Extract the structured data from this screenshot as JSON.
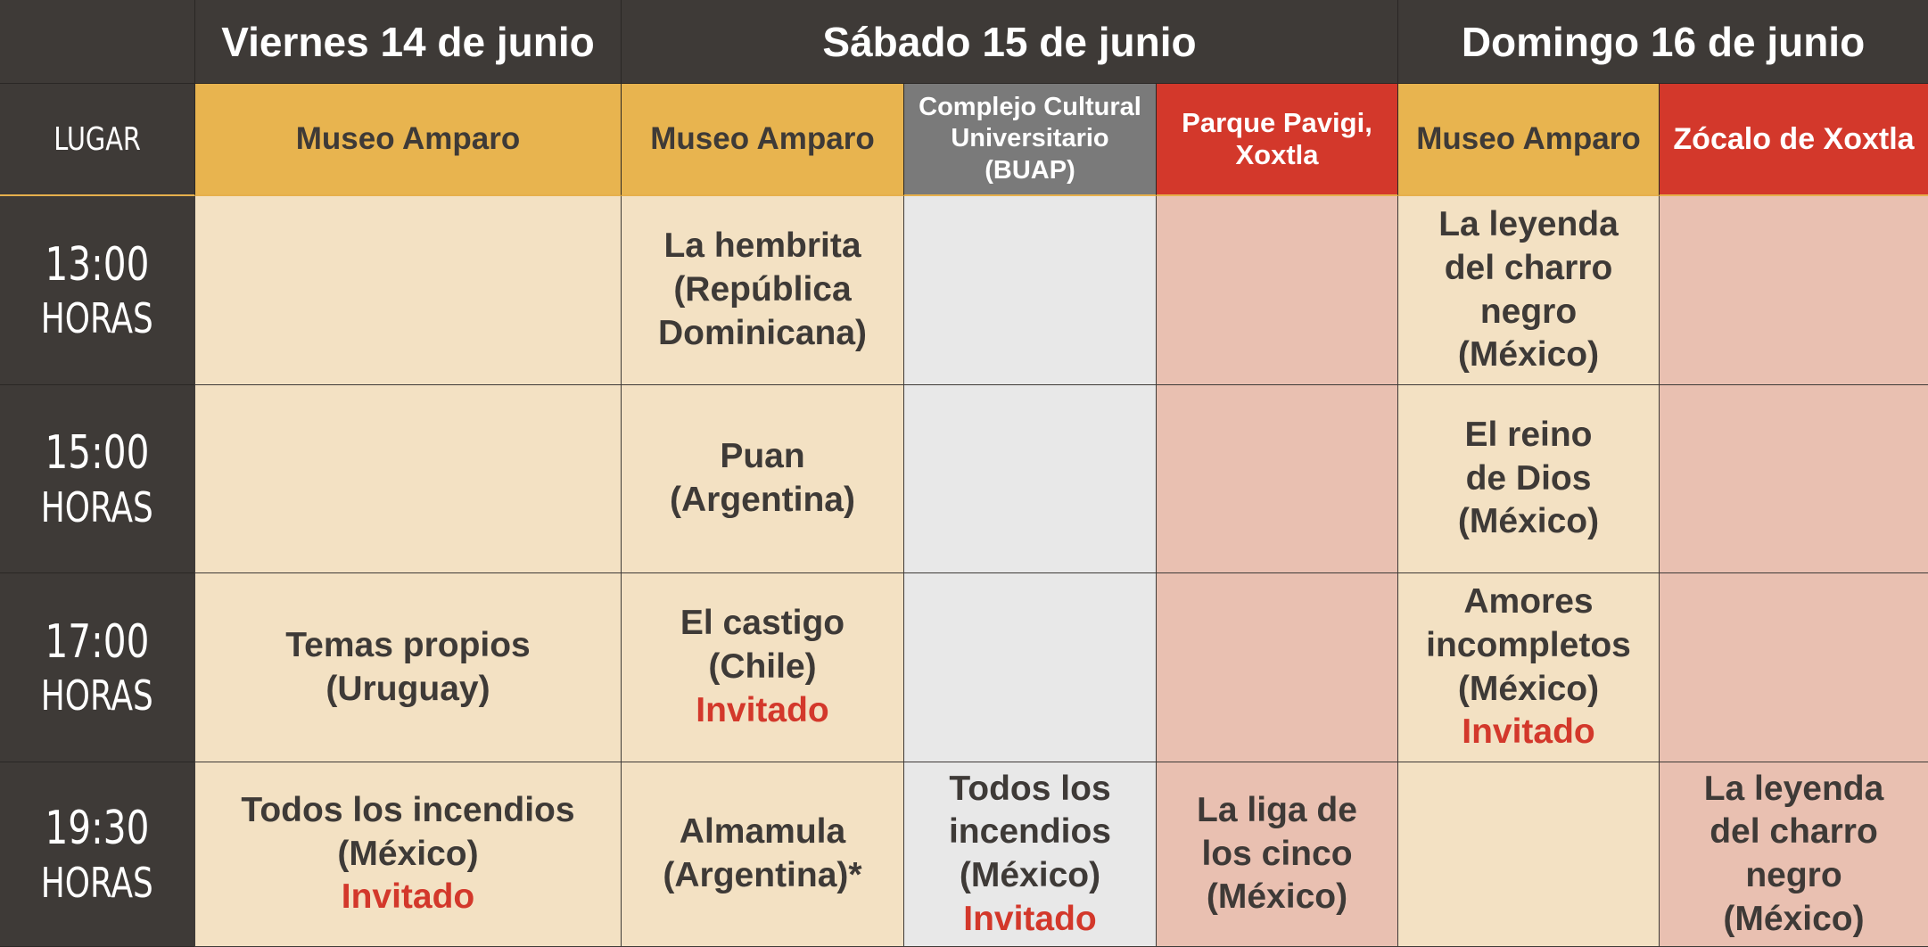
{
  "days": [
    "Viernes 14 de junio",
    "Sábado 15 de junio",
    "Domingo 16 de junio"
  ],
  "lugar_label": "LUGAR",
  "venues": [
    {
      "name": "Museo Amparo",
      "color": "#e8b44f"
    },
    {
      "name": "Museo Amparo",
      "color": "#e8b44f"
    },
    {
      "name": "Complejo Cultural Universitario (BUAP)",
      "color": "#7a7a7a"
    },
    {
      "name": "Parque Pavigi, Xoxtla",
      "color": "#d3382b"
    },
    {
      "name": "Museo Amparo",
      "color": "#e8b44f"
    },
    {
      "name": "Zócalo de Xoxtla",
      "color": "#d3382b"
    }
  ],
  "times": [
    {
      "time": "13:00",
      "unit": "HORAS"
    },
    {
      "time": "15:00",
      "unit": "HORAS"
    },
    {
      "time": "17:00",
      "unit": "HORAS"
    },
    {
      "time": "19:30",
      "unit": "HORAS"
    }
  ],
  "invitado_label": "Invitado",
  "screenings": {
    "r13": {
      "sab_amparo": [
        "La hembrita",
        "(República",
        "Dominicana)"
      ],
      "dom_amparo": [
        "La leyenda",
        "del charro",
        "negro",
        "(México)"
      ]
    },
    "r15": {
      "sab_amparo": [
        "Puan",
        "(Argentina)"
      ],
      "dom_amparo": [
        "El reino",
        "de Dios",
        "(México)"
      ]
    },
    "r17": {
      "vie_amparo": [
        "Temas propios",
        "(Uruguay)"
      ],
      "sab_amparo": [
        "El castigo",
        "(Chile)"
      ],
      "dom_amparo": [
        "Amores",
        "incompletos",
        "(México)"
      ]
    },
    "r1930": {
      "vie_amparo": [
        "Todos los incendios",
        "(México)"
      ],
      "sab_amparo": [
        "Almamula",
        "(Argentina)*"
      ],
      "sab_complejo": [
        "Todos los",
        "incendios",
        "(México)"
      ],
      "sab_pavigi": [
        "La liga de",
        "los cinco",
        "(México)"
      ],
      "dom_zocalo": [
        "La leyenda",
        "del charro",
        "negro",
        "(México)"
      ]
    }
  },
  "colors": {
    "dark": "#3e3a37",
    "amparo_header": "#e8b44f",
    "amparo_cell": "#f3e1c3",
    "complejo_header": "#7a7a7a",
    "complejo_cell": "#e8e8e8",
    "red_header": "#d3382b",
    "red_cell": "#e9c0b1",
    "invitado": "#d3382b"
  }
}
